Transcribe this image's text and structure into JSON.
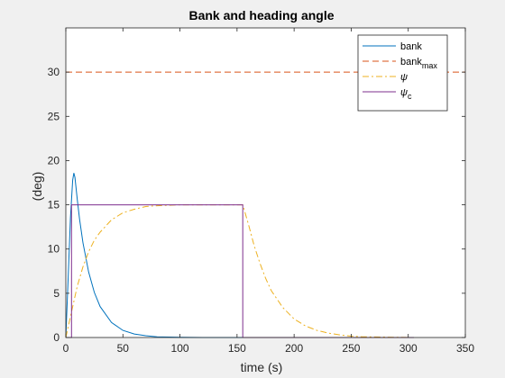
{
  "chart_data": {
    "type": "line",
    "title": "Bank and heading angle",
    "xlabel": "time (s)",
    "ylabel": "(deg)",
    "xlim": [
      0,
      350
    ],
    "ylim": [
      0,
      35
    ],
    "xticks": [
      0,
      50,
      100,
      150,
      200,
      250,
      300,
      350
    ],
    "yticks": [
      0,
      5,
      10,
      15,
      20,
      25,
      30
    ],
    "grid": false,
    "legend_position": "top-right",
    "colors": {
      "figure_bg": "#f0f0f0",
      "axes_bg": "#ffffff",
      "axis": "#262626"
    },
    "series": [
      {
        "name": "bank",
        "legend_main": "bank",
        "legend_sub": "",
        "color": "#0072bd",
        "dash": "solid",
        "x": [
          0,
          2,
          4,
          6,
          7,
          8,
          10,
          12,
          15,
          20,
          25,
          30,
          40,
          50,
          60,
          70,
          80,
          100,
          120,
          150,
          200,
          250,
          305
        ],
        "y": [
          0,
          6.5,
          13.5,
          17.8,
          18.6,
          18.1,
          15.6,
          13.4,
          10.7,
          7.4,
          5.1,
          3.5,
          1.7,
          0.8,
          0.4,
          0.2,
          0.08,
          0.02,
          0,
          0,
          0,
          0,
          0
        ]
      },
      {
        "name": "bank_max",
        "legend_main": "bank",
        "legend_sub": "max",
        "color": "#d95319",
        "dash": "dashed",
        "x": [
          0,
          350
        ],
        "y": [
          30,
          30
        ]
      },
      {
        "name": "psi",
        "legend_main": "ψ",
        "legend_sub": "",
        "color": "#edb120",
        "dash": "dashdot",
        "x": [
          0,
          5,
          10,
          15,
          20,
          25,
          30,
          40,
          50,
          60,
          70,
          80,
          100,
          120,
          155,
          160,
          165,
          170,
          175,
          180,
          190,
          200,
          210,
          220,
          230,
          240,
          250,
          260,
          305
        ],
        "y": [
          0,
          2.9,
          5.8,
          8.0,
          9.7,
          11.0,
          11.9,
          13.3,
          14.1,
          14.5,
          14.8,
          14.9,
          15,
          15,
          15,
          12.8,
          10.4,
          8.4,
          6.7,
          5.3,
          3.4,
          2.1,
          1.3,
          0.8,
          0.5,
          0.3,
          0.15,
          0.08,
          0
        ]
      },
      {
        "name": "psi_c",
        "legend_main": "ψ",
        "legend_sub": "c",
        "color": "#7e2f8e",
        "dash": "solid",
        "x": [
          0,
          5,
          5,
          155,
          155,
          305
        ],
        "y": [
          0,
          0,
          15,
          15,
          0,
          0
        ]
      }
    ]
  }
}
